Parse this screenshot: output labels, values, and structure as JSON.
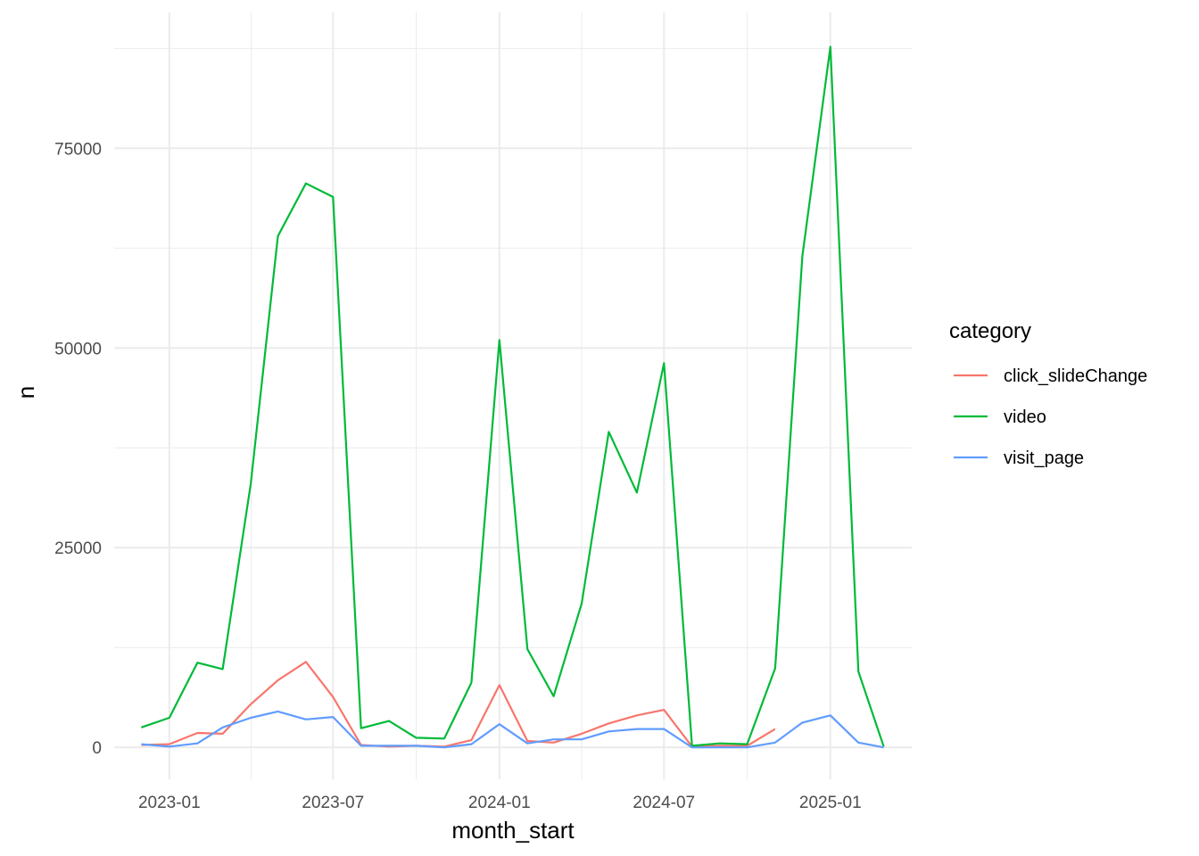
{
  "chart_data": {
    "type": "line",
    "title": "",
    "xlabel": "month_start",
    "ylabel": "n",
    "x": [
      "2022-12-01",
      "2023-01-01",
      "2023-02-01",
      "2023-03-01",
      "2023-04-01",
      "2023-05-01",
      "2023-06-01",
      "2023-07-01",
      "2023-08-01",
      "2023-09-01",
      "2023-10-01",
      "2023-11-01",
      "2023-12-01",
      "2024-01-01",
      "2024-02-01",
      "2024-03-01",
      "2024-04-01",
      "2024-05-01",
      "2024-06-01",
      "2024-07-01",
      "2024-08-01",
      "2024-09-01",
      "2024-10-01",
      "2024-11-01",
      "2024-12-01",
      "2025-01-01",
      "2025-02-01",
      "2025-03-01"
    ],
    "x_ticks": [
      "2023-01",
      "2023-07",
      "2024-01",
      "2024-07",
      "2025-01"
    ],
    "y_ticks": [
      0,
      25000,
      50000,
      75000
    ],
    "ylim": [
      -4000,
      92000
    ],
    "xlim": [
      "2022-11-01",
      "2025-04-01"
    ],
    "grid": true,
    "legend": {
      "title": "category",
      "position": "right"
    },
    "series": [
      {
        "name": "click_slideChange",
        "color": "#F8766D",
        "values": [
          300,
          400,
          1800,
          1700,
          5400,
          8400,
          10700,
          6300,
          300,
          100,
          200,
          100,
          900,
          7800,
          800,
          600,
          1700,
          3000,
          4000,
          4700,
          100,
          200,
          200,
          2300,
          null,
          null,
          null,
          null
        ]
      },
      {
        "name": "video",
        "color": "#00BA38",
        "values": [
          2500,
          3700,
          10600,
          9800,
          33000,
          64000,
          70600,
          68900,
          2400,
          3300,
          1200,
          1100,
          8100,
          51000,
          12300,
          6400,
          18000,
          39500,
          31900,
          48100,
          200,
          500,
          400,
          9900,
          61500,
          87700,
          9500,
          100
        ]
      },
      {
        "name": "visit_page",
        "color": "#619CFF",
        "values": [
          400,
          100,
          500,
          2500,
          3700,
          4500,
          3500,
          3800,
          200,
          200,
          200,
          0,
          400,
          2900,
          500,
          1000,
          1000,
          2000,
          2300,
          2300,
          0,
          0,
          0,
          600,
          3100,
          4000,
          600,
          0
        ]
      }
    ]
  }
}
